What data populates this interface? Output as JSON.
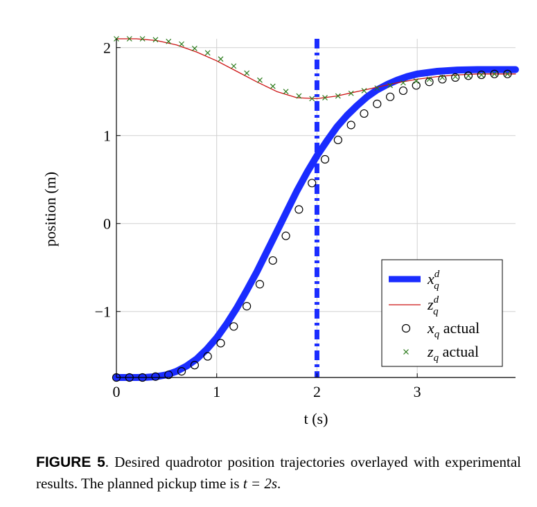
{
  "chart_data": {
    "type": "line",
    "xlabel": "t (s)",
    "ylabel": "position (m)",
    "xlim": [
      0,
      3.98
    ],
    "ylim": [
      -1.75,
      2.1
    ],
    "x_ticks": [
      "0",
      "1",
      "2",
      "3"
    ],
    "y_ticks": [
      "−1",
      "0",
      "1",
      "2"
    ],
    "x_tick_values": [
      0,
      1,
      2,
      3
    ],
    "y_tick_values": [
      -1,
      0,
      1,
      2
    ],
    "grid": true,
    "legend_position": "bottom-right",
    "vline": {
      "x": 2,
      "style": "dash-dot",
      "color": "#1a2cff"
    },
    "series": [
      {
        "name_base": "x",
        "name_sub": "q",
        "name_sup": "d",
        "kind": "line",
        "color": "#1a2cff",
        "x": [
          0,
          0.1,
          0.2,
          0.3,
          0.4,
          0.5,
          0.6,
          0.7,
          0.8,
          0.9,
          1.0,
          1.1,
          1.2,
          1.3,
          1.4,
          1.5,
          1.6,
          1.7,
          1.8,
          1.9,
          2.0,
          2.1,
          2.2,
          2.3,
          2.4,
          2.5,
          2.6,
          2.7,
          2.8,
          2.9,
          3.0,
          3.2,
          3.4,
          3.6,
          3.8,
          3.98
        ],
        "y": [
          -1.75,
          -1.75,
          -1.75,
          -1.748,
          -1.74,
          -1.72,
          -1.68,
          -1.62,
          -1.54,
          -1.43,
          -1.3,
          -1.14,
          -0.96,
          -0.76,
          -0.55,
          -0.32,
          -0.09,
          0.14,
          0.37,
          0.58,
          0.77,
          0.94,
          1.1,
          1.23,
          1.34,
          1.44,
          1.52,
          1.58,
          1.63,
          1.67,
          1.7,
          1.73,
          1.745,
          1.75,
          1.75,
          1.75
        ]
      },
      {
        "name_base": "z",
        "name_sub": "q",
        "name_sup": "d",
        "kind": "line",
        "color": "#cc1111",
        "x": [
          0,
          0.2,
          0.4,
          0.6,
          0.8,
          1.0,
          1.2,
          1.4,
          1.6,
          1.8,
          2.0,
          2.2,
          2.4,
          2.6,
          2.8,
          3.0,
          3.2,
          3.4,
          3.6,
          3.8,
          3.98
        ],
        "y": [
          2.1,
          2.1,
          2.08,
          2.03,
          1.95,
          1.85,
          1.73,
          1.61,
          1.5,
          1.43,
          1.42,
          1.45,
          1.5,
          1.55,
          1.6,
          1.64,
          1.67,
          1.69,
          1.7,
          1.7,
          1.7
        ]
      },
      {
        "name_base": "x",
        "name_sub": "q",
        "name_text": " actual",
        "kind": "circle",
        "color": "#000000",
        "x": [
          0,
          0.13,
          0.26,
          0.39,
          0.52,
          0.65,
          0.78,
          0.91,
          1.04,
          1.17,
          1.3,
          1.43,
          1.56,
          1.69,
          1.82,
          1.95,
          2.08,
          2.21,
          2.34,
          2.47,
          2.6,
          2.73,
          2.86,
          2.99,
          3.12,
          3.25,
          3.38,
          3.51,
          3.64,
          3.77,
          3.9
        ],
        "y": [
          -1.75,
          -1.75,
          -1.75,
          -1.74,
          -1.72,
          -1.68,
          -1.61,
          -1.51,
          -1.36,
          -1.17,
          -0.94,
          -0.69,
          -0.42,
          -0.14,
          0.16,
          0.46,
          0.73,
          0.95,
          1.12,
          1.25,
          1.36,
          1.44,
          1.51,
          1.57,
          1.61,
          1.64,
          1.66,
          1.68,
          1.69,
          1.7,
          1.7
        ]
      },
      {
        "name_base": "z",
        "name_sub": "q",
        "name_text": " actual",
        "kind": "cross",
        "color": "#2a7a1a",
        "x": [
          0,
          0.13,
          0.26,
          0.39,
          0.52,
          0.65,
          0.78,
          0.91,
          1.04,
          1.17,
          1.3,
          1.43,
          1.56,
          1.69,
          1.82,
          1.95,
          2.08,
          2.21,
          2.34,
          2.47,
          2.6,
          2.73,
          2.86,
          2.99,
          3.12,
          3.25,
          3.38,
          3.51,
          3.64,
          3.77,
          3.9
        ],
        "y": [
          2.1,
          2.1,
          2.1,
          2.09,
          2.07,
          2.04,
          1.99,
          1.94,
          1.87,
          1.79,
          1.71,
          1.63,
          1.56,
          1.5,
          1.45,
          1.42,
          1.43,
          1.45,
          1.48,
          1.51,
          1.54,
          1.57,
          1.6,
          1.62,
          1.64,
          1.66,
          1.67,
          1.68,
          1.69,
          1.7,
          1.7
        ]
      }
    ]
  },
  "caption": {
    "label": "FIGURE 5",
    "text_before": ".    Desired quadrotor position trajectories overlayed with experimental results. The planned pickup time is ",
    "math": "t = 2s",
    "text_after": "."
  }
}
